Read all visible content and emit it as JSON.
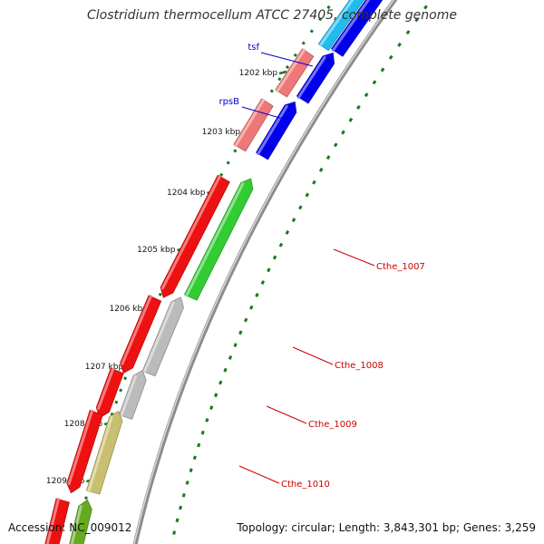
{
  "title": "Clostridium thermocellum ATCC 27405, complete genome",
  "footer": {
    "accession": "Accession: NC_009012",
    "summary": "Topology: circular; Length: 3,843,301 bp; Genes: 3,259"
  },
  "colors": {
    "backbone": "#8c8c8c",
    "tick": "#1a7a1a",
    "gene_label_blue": "#0000cc",
    "gene_label_red": "#cc0000",
    "scale_label": "#111111"
  },
  "scale_labels": [
    "1202 kbp",
    "1203 kbp",
    "1204 kbp",
    "1205 kbp",
    "1206 kbp",
    "1207 kbp",
    "1208 kbp",
    "1209 kbp"
  ],
  "gene_labels": [
    {
      "name": "tsf",
      "color": "blue"
    },
    {
      "name": "rpsB",
      "color": "blue"
    },
    {
      "name": "Cthe_1007",
      "color": "red"
    },
    {
      "name": "Cthe_1008",
      "color": "red"
    },
    {
      "name": "Cthe_1009",
      "color": "red"
    },
    {
      "name": "Cthe_1010",
      "color": "red"
    }
  ],
  "features": [
    {
      "track": "outer",
      "color": "#22bbee",
      "strand": "forward"
    },
    {
      "track": "outer",
      "color": "#0000ee",
      "strand": "forward"
    },
    {
      "track": "inner",
      "color": "#ee7777",
      "strand": "none"
    },
    {
      "track": "outer",
      "color": "#0000ee",
      "strand": "forward"
    },
    {
      "track": "inner",
      "color": "#ee7777",
      "strand": "none"
    },
    {
      "track": "outer",
      "color": "#0000ee",
      "strand": "forward"
    },
    {
      "track": "inner",
      "color": "#ee1111",
      "strand": "reverse"
    },
    {
      "track": "outer",
      "color": "#33cc33",
      "strand": "forward"
    },
    {
      "track": "inner",
      "color": "#ee1111",
      "strand": "reverse"
    },
    {
      "track": "outer",
      "color": "#bbbbbb",
      "strand": "forward"
    },
    {
      "track": "inner",
      "color": "#ee1111",
      "strand": "reverse"
    },
    {
      "track": "outer",
      "color": "#bbbbbb",
      "strand": "forward"
    },
    {
      "track": "inner",
      "color": "#ee1111",
      "strand": "reverse"
    },
    {
      "track": "outer",
      "color": "#c8c070",
      "strand": "forward"
    },
    {
      "track": "inner",
      "color": "#ee1111",
      "strand": "reverse"
    },
    {
      "track": "outer",
      "color": "#66aa22",
      "strand": "forward"
    }
  ]
}
